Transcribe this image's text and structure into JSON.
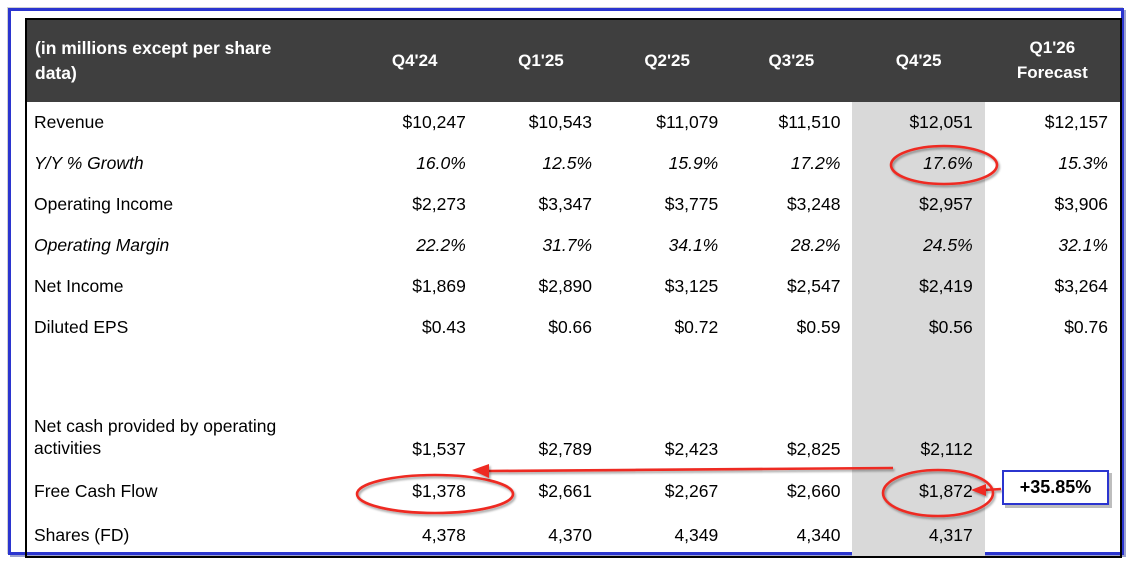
{
  "table": {
    "header": {
      "label": "(in millions except per share\ndata)",
      "columns": [
        "Q4'24",
        "Q1'25",
        "Q2'25",
        "Q3'25",
        "Q4'25",
        "Q1'26\nForecast"
      ]
    },
    "rows": [
      {
        "label": "Revenue",
        "italic": false,
        "values": [
          "$10,247",
          "$10,543",
          "$11,079",
          "$11,510",
          "$12,051",
          "$12,157"
        ]
      },
      {
        "label": "Y/Y % Growth",
        "italic": true,
        "values": [
          "16.0%",
          "12.5%",
          "15.9%",
          "17.2%",
          "17.6%",
          "15.3%"
        ]
      },
      {
        "label": "Operating Income",
        "italic": false,
        "values": [
          "$2,273",
          "$3,347",
          "$3,775",
          "$3,248",
          "$2,957",
          "$3,906"
        ]
      },
      {
        "label": "Operating Margin",
        "italic": true,
        "values": [
          "22.2%",
          "31.7%",
          "34.1%",
          "28.2%",
          "24.5%",
          "32.1%"
        ]
      },
      {
        "label": "Net Income",
        "italic": false,
        "values": [
          "$1,869",
          "$2,890",
          "$3,125",
          "$2,547",
          "$2,419",
          "$3,264"
        ]
      },
      {
        "label": "Diluted EPS",
        "italic": false,
        "values": [
          "$0.43",
          "$0.66",
          "$0.72",
          "$0.59",
          "$0.56",
          "$0.76"
        ]
      },
      {
        "label": "",
        "italic": false,
        "values": [
          "",
          "",
          "",
          "",
          "",
          ""
        ]
      },
      {
        "label": "Net cash provided by operating\nactivities",
        "italic": false,
        "values": [
          "$1,537",
          "$2,789",
          "$2,423",
          "$2,825",
          "$2,112",
          ""
        ]
      },
      {
        "label": "Free Cash Flow",
        "italic": false,
        "values": [
          "$1,378",
          "$2,661",
          "$2,267",
          "$2,660",
          "$1,872",
          ""
        ]
      },
      {
        "label": "Shares (FD)",
        "italic": false,
        "values": [
          "4,378",
          "4,370",
          "4,349",
          "4,340",
          "4,317",
          ""
        ]
      }
    ],
    "highlighted_column": "Q4'25"
  },
  "annotations": {
    "callout_label": "+35.85%",
    "circled_values": [
      "17.6%",
      "$1,378",
      "$1,872"
    ]
  },
  "colors": {
    "header_bg": "#3f3f3f",
    "header_text": "#ffffff",
    "highlight_column_bg": "#d9d9d9",
    "frame_border": "#2b35cf",
    "annotation_red": "#ee2c23",
    "table_border": "#000000"
  }
}
